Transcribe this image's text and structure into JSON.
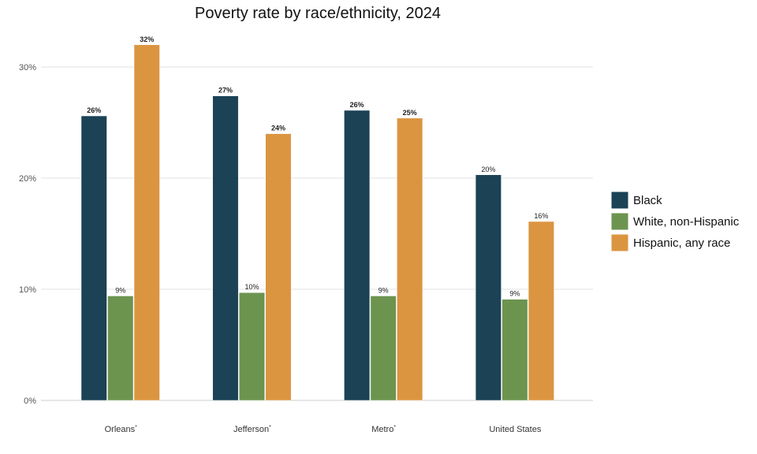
{
  "chart_data": {
    "type": "bar",
    "title": "Poverty rate by race/ethnicity, 2024",
    "xlabel": "",
    "ylabel": "",
    "ylim": [
      0,
      0.32
    ],
    "yticks": [
      0,
      0.1,
      0.2,
      0.3
    ],
    "ytick_labels": [
      "0%",
      "10%",
      "20%",
      "30%"
    ],
    "grid": true,
    "legend_position": "right",
    "categories": [
      "Orleans",
      "Jefferson",
      "Metro",
      "United States"
    ],
    "category_markers": [
      "*",
      "*",
      "*",
      ""
    ],
    "series": [
      {
        "name": "Black",
        "color": "#1b4255",
        "values": [
          0.256,
          0.274,
          0.261,
          0.203
        ],
        "labels": [
          "26%",
          "27%",
          "26%",
          "20%"
        ],
        "label_bold": [
          true,
          true,
          true,
          false
        ]
      },
      {
        "name": "White, non-Hispanic",
        "color": "#6c944f",
        "values": [
          0.094,
          0.097,
          0.094,
          0.091
        ],
        "labels": [
          "9%",
          "10%",
          "9%",
          "9%"
        ],
        "label_bold": [
          false,
          false,
          false,
          false
        ]
      },
      {
        "name": "Hispanic, any race",
        "color": "#db9541",
        "values": [
          0.32,
          0.24,
          0.254,
          0.161
        ],
        "labels": [
          "32%",
          "24%",
          "25%",
          "16%"
        ],
        "label_bold": [
          true,
          true,
          true,
          false
        ]
      }
    ]
  }
}
